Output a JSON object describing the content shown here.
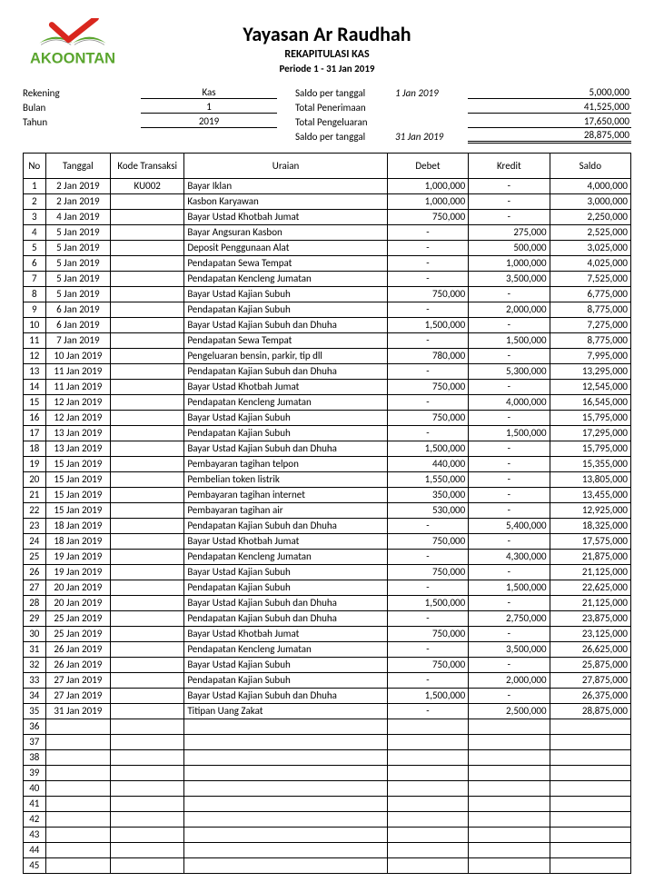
{
  "org": "Yayasan Ar Raudhah",
  "report_title": "REKAPITULASI KAS",
  "period": "Periode 1 - 31 Jan 2019",
  "logo": {
    "brand": "AKOONTAN",
    "color_green": "#5aa52e",
    "color_red": "#d9271e"
  },
  "meta_left": {
    "rekening_label": "Rekening",
    "rekening_val": "Kas",
    "bulan_label": "Bulan",
    "bulan_val": "1",
    "tahun_label": "Tahun",
    "tahun_val": "2019"
  },
  "meta_right": {
    "r0_label": "Saldo per tanggal",
    "r0_date": "1 Jan 2019",
    "r0_val": "5,000,000",
    "r1_label": "Total Penerimaan",
    "r1_date": "",
    "r1_val": "41,525,000",
    "r2_label": "Total Pengeluaran",
    "r2_date": "",
    "r2_val": "17,650,000",
    "r3_label": "Saldo per tanggal",
    "r3_date": "31 Jan 2019",
    "r3_val": "28,875,000"
  },
  "columns": {
    "no": "No",
    "tanggal": "Tanggal",
    "kode": "Kode Transaksi",
    "uraian": "Uraian",
    "debet": "Debet",
    "kredit": "Kredit",
    "saldo": "Saldo"
  },
  "rows": [
    {
      "no": "1",
      "tgl": "2 Jan 2019",
      "kode": "KU002",
      "uraian": "Bayar Iklan",
      "debet": "1,000,000",
      "kredit": "-",
      "saldo": "4,000,000"
    },
    {
      "no": "2",
      "tgl": "2 Jan 2019",
      "kode": "",
      "uraian": "Kasbon Karyawan",
      "debet": "1,000,000",
      "kredit": "-",
      "saldo": "3,000,000"
    },
    {
      "no": "3",
      "tgl": "4 Jan 2019",
      "kode": "",
      "uraian": "Bayar Ustad Khotbah Jumat",
      "debet": "750,000",
      "kredit": "-",
      "saldo": "2,250,000"
    },
    {
      "no": "4",
      "tgl": "5 Jan 2019",
      "kode": "",
      "uraian": "Bayar Angsuran Kasbon",
      "debet": "-",
      "kredit": "275,000",
      "saldo": "2,525,000"
    },
    {
      "no": "5",
      "tgl": "5 Jan 2019",
      "kode": "",
      "uraian": "Deposit Penggunaan Alat",
      "debet": "-",
      "kredit": "500,000",
      "saldo": "3,025,000"
    },
    {
      "no": "6",
      "tgl": "5 Jan 2019",
      "kode": "",
      "uraian": "Pendapatan Sewa Tempat",
      "debet": "-",
      "kredit": "1,000,000",
      "saldo": "4,025,000"
    },
    {
      "no": "7",
      "tgl": "5 Jan 2019",
      "kode": "",
      "uraian": "Pendapatan Kencleng Jumatan",
      "debet": "-",
      "kredit": "3,500,000",
      "saldo": "7,525,000"
    },
    {
      "no": "8",
      "tgl": "5 Jan 2019",
      "kode": "",
      "uraian": "Bayar Ustad Kajian Subuh",
      "debet": "750,000",
      "kredit": "-",
      "saldo": "6,775,000"
    },
    {
      "no": "9",
      "tgl": "6 Jan 2019",
      "kode": "",
      "uraian": "Pendapatan Kajian Subuh",
      "debet": "-",
      "kredit": "2,000,000",
      "saldo": "8,775,000"
    },
    {
      "no": "10",
      "tgl": "6 Jan 2019",
      "kode": "",
      "uraian": "Bayar Ustad Kajian Subuh dan Dhuha",
      "debet": "1,500,000",
      "kredit": "-",
      "saldo": "7,275,000"
    },
    {
      "no": "11",
      "tgl": "7 Jan 2019",
      "kode": "",
      "uraian": "Pendapatan Sewa Tempat",
      "debet": "-",
      "kredit": "1,500,000",
      "saldo": "8,775,000"
    },
    {
      "no": "12",
      "tgl": "10 Jan 2019",
      "kode": "",
      "uraian": "Pengeluaran bensin, parkir, tip dll",
      "debet": "780,000",
      "kredit": "-",
      "saldo": "7,995,000"
    },
    {
      "no": "13",
      "tgl": "11 Jan 2019",
      "kode": "",
      "uraian": "Pendapatan Kajian Subuh dan Dhuha",
      "debet": "-",
      "kredit": "5,300,000",
      "saldo": "13,295,000"
    },
    {
      "no": "14",
      "tgl": "11 Jan 2019",
      "kode": "",
      "uraian": "Bayar Ustad Khotbah Jumat",
      "debet": "750,000",
      "kredit": "-",
      "saldo": "12,545,000"
    },
    {
      "no": "15",
      "tgl": "12 Jan 2019",
      "kode": "",
      "uraian": "Pendapatan Kencleng Jumatan",
      "debet": "-",
      "kredit": "4,000,000",
      "saldo": "16,545,000"
    },
    {
      "no": "16",
      "tgl": "12 Jan 2019",
      "kode": "",
      "uraian": "Bayar Ustad Kajian Subuh",
      "debet": "750,000",
      "kredit": "-",
      "saldo": "15,795,000"
    },
    {
      "no": "17",
      "tgl": "13 Jan 2019",
      "kode": "",
      "uraian": "Pendapatan Kajian Subuh",
      "debet": "-",
      "kredit": "1,500,000",
      "saldo": "17,295,000"
    },
    {
      "no": "18",
      "tgl": "13 Jan 2019",
      "kode": "",
      "uraian": "Bayar Ustad Kajian Subuh dan Dhuha",
      "debet": "1,500,000",
      "kredit": "-",
      "saldo": "15,795,000"
    },
    {
      "no": "19",
      "tgl": "15 Jan 2019",
      "kode": "",
      "uraian": "Pembayaran tagihan telpon",
      "debet": "440,000",
      "kredit": "-",
      "saldo": "15,355,000"
    },
    {
      "no": "20",
      "tgl": "15 Jan 2019",
      "kode": "",
      "uraian": "Pembelian token listrik",
      "debet": "1,550,000",
      "kredit": "-",
      "saldo": "13,805,000"
    },
    {
      "no": "21",
      "tgl": "15 Jan 2019",
      "kode": "",
      "uraian": "Pembayaran tagihan internet",
      "debet": "350,000",
      "kredit": "-",
      "saldo": "13,455,000"
    },
    {
      "no": "22",
      "tgl": "15 Jan 2019",
      "kode": "",
      "uraian": "Pembayaran tagihan air",
      "debet": "530,000",
      "kredit": "-",
      "saldo": "12,925,000"
    },
    {
      "no": "23",
      "tgl": "18 Jan 2019",
      "kode": "",
      "uraian": "Pendapatan Kajian Subuh dan Dhuha",
      "debet": "-",
      "kredit": "5,400,000",
      "saldo": "18,325,000"
    },
    {
      "no": "24",
      "tgl": "18 Jan 2019",
      "kode": "",
      "uraian": "Bayar Ustad Khotbah Jumat",
      "debet": "750,000",
      "kredit": "-",
      "saldo": "17,575,000"
    },
    {
      "no": "25",
      "tgl": "19 Jan 2019",
      "kode": "",
      "uraian": "Pendapatan Kencleng Jumatan",
      "debet": "-",
      "kredit": "4,300,000",
      "saldo": "21,875,000"
    },
    {
      "no": "26",
      "tgl": "19 Jan 2019",
      "kode": "",
      "uraian": "Bayar Ustad Kajian Subuh",
      "debet": "750,000",
      "kredit": "-",
      "saldo": "21,125,000"
    },
    {
      "no": "27",
      "tgl": "20 Jan 2019",
      "kode": "",
      "uraian": "Pendapatan Kajian Subuh",
      "debet": "-",
      "kredit": "1,500,000",
      "saldo": "22,625,000"
    },
    {
      "no": "28",
      "tgl": "20 Jan 2019",
      "kode": "",
      "uraian": "Bayar Ustad Kajian Subuh dan Dhuha",
      "debet": "1,500,000",
      "kredit": "-",
      "saldo": "21,125,000"
    },
    {
      "no": "29",
      "tgl": "25 Jan 2019",
      "kode": "",
      "uraian": "Pendapatan Kajian Subuh dan Dhuha",
      "debet": "-",
      "kredit": "2,750,000",
      "saldo": "23,875,000"
    },
    {
      "no": "30",
      "tgl": "25 Jan 2019",
      "kode": "",
      "uraian": "Bayar Ustad Khotbah Jumat",
      "debet": "750,000",
      "kredit": "-",
      "saldo": "23,125,000"
    },
    {
      "no": "31",
      "tgl": "26 Jan 2019",
      "kode": "",
      "uraian": "Pendapatan Kencleng Jumatan",
      "debet": "-",
      "kredit": "3,500,000",
      "saldo": "26,625,000"
    },
    {
      "no": "32",
      "tgl": "26 Jan 2019",
      "kode": "",
      "uraian": "Bayar Ustad Kajian Subuh",
      "debet": "750,000",
      "kredit": "-",
      "saldo": "25,875,000"
    },
    {
      "no": "33",
      "tgl": "27 Jan 2019",
      "kode": "",
      "uraian": "Pendapatan Kajian Subuh",
      "debet": "-",
      "kredit": "2,000,000",
      "saldo": "27,875,000"
    },
    {
      "no": "34",
      "tgl": "27 Jan 2019",
      "kode": "",
      "uraian": "Bayar Ustad Kajian Subuh dan Dhuha",
      "debet": "1,500,000",
      "kredit": "-",
      "saldo": "26,375,000"
    },
    {
      "no": "35",
      "tgl": "31 Jan 2019",
      "kode": "",
      "uraian": "Titipan Uang Zakat",
      "debet": "-",
      "kredit": "2,500,000",
      "saldo": "28,875,000"
    },
    {
      "no": "36",
      "tgl": "",
      "kode": "",
      "uraian": "",
      "debet": "",
      "kredit": "",
      "saldo": ""
    },
    {
      "no": "37",
      "tgl": "",
      "kode": "",
      "uraian": "",
      "debet": "",
      "kredit": "",
      "saldo": ""
    },
    {
      "no": "38",
      "tgl": "",
      "kode": "",
      "uraian": "",
      "debet": "",
      "kredit": "",
      "saldo": ""
    },
    {
      "no": "39",
      "tgl": "",
      "kode": "",
      "uraian": "",
      "debet": "",
      "kredit": "",
      "saldo": ""
    },
    {
      "no": "40",
      "tgl": "",
      "kode": "",
      "uraian": "",
      "debet": "",
      "kredit": "",
      "saldo": ""
    },
    {
      "no": "41",
      "tgl": "",
      "kode": "",
      "uraian": "",
      "debet": "",
      "kredit": "",
      "saldo": ""
    },
    {
      "no": "42",
      "tgl": "",
      "kode": "",
      "uraian": "",
      "debet": "",
      "kredit": "",
      "saldo": ""
    },
    {
      "no": "43",
      "tgl": "",
      "kode": "",
      "uraian": "",
      "debet": "",
      "kredit": "",
      "saldo": ""
    },
    {
      "no": "44",
      "tgl": "",
      "kode": "",
      "uraian": "",
      "debet": "",
      "kredit": "",
      "saldo": ""
    },
    {
      "no": "45",
      "tgl": "",
      "kode": "",
      "uraian": "",
      "debet": "",
      "kredit": "",
      "saldo": ""
    }
  ]
}
